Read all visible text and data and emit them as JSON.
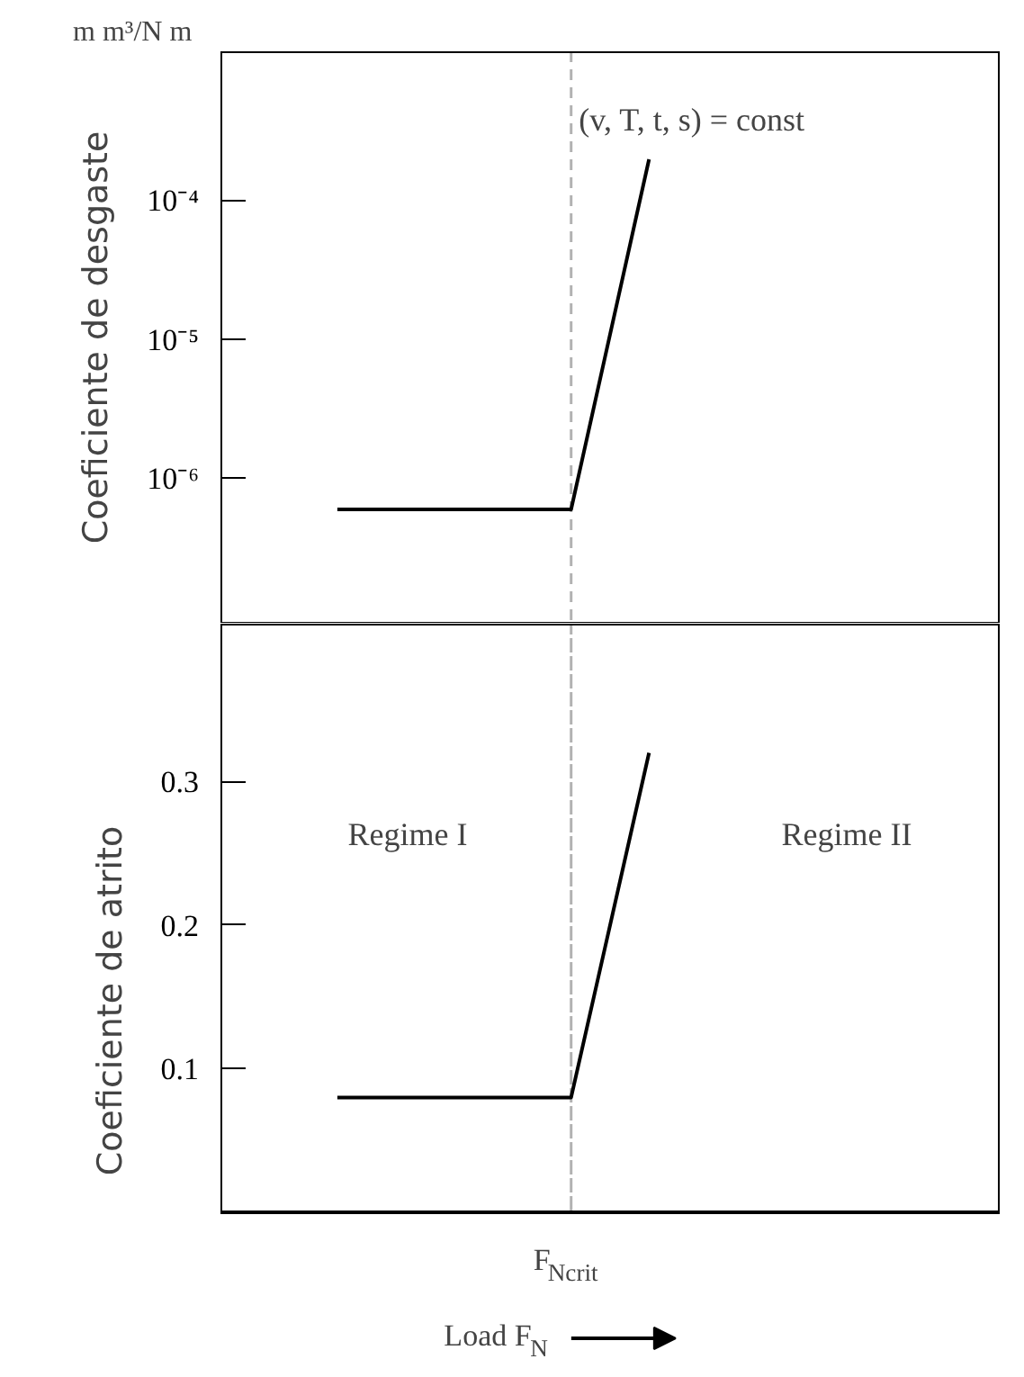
{
  "chart_data": [
    {
      "type": "line",
      "ylabel": "Coeficiente de desgaste",
      "categories": [
        null,
        null,
        null,
        null,
        null,
        null,
        null,
        null,
        null,
        null
      ],
      "values": [
        null,
        6e-07,
        6e-07,
        6e-07,
        6e-07,
        0.0002,
        null,
        null,
        null,
        null
      ],
      "color": "#000000",
      "log": "y",
      "ylim": [
        9e-08,
        0.0012
      ],
      "yticks": [
        {
          "value": 1e-06,
          "label": "10⁻⁶"
        },
        {
          "value": 1e-05,
          "label": "10⁻⁵"
        },
        {
          "value": 0.0001,
          "label": "10⁻⁴"
        }
      ],
      "tick_labels": "y",
      "grid": false,
      "line_style": "solid",
      "annotations": [
        "m m³/N m",
        "(v, T, t, s) = const"
      ]
    },
    {
      "type": "line",
      "ylabel": "Coeficiente de atrito",
      "xlabel": "Load F$_{N}$",
      "categories": [
        null,
        null,
        null,
        null,
        null,
        null,
        null,
        null,
        null,
        null
      ],
      "values": [
        null,
        0.08,
        0.08,
        0.08,
        0.08,
        0.32,
        null,
        null,
        null,
        null
      ],
      "color": "#000000",
      "ylim": [
        0,
        0.41
      ],
      "yticks": [
        0.1,
        0.2,
        0.3
      ],
      "tick_labels": "y",
      "grid": false,
      "line_style": "solid",
      "annotations": [
        "Regime I",
        "Regime II",
        "F$_{Ncrit}$"
      ]
    }
  ]
}
